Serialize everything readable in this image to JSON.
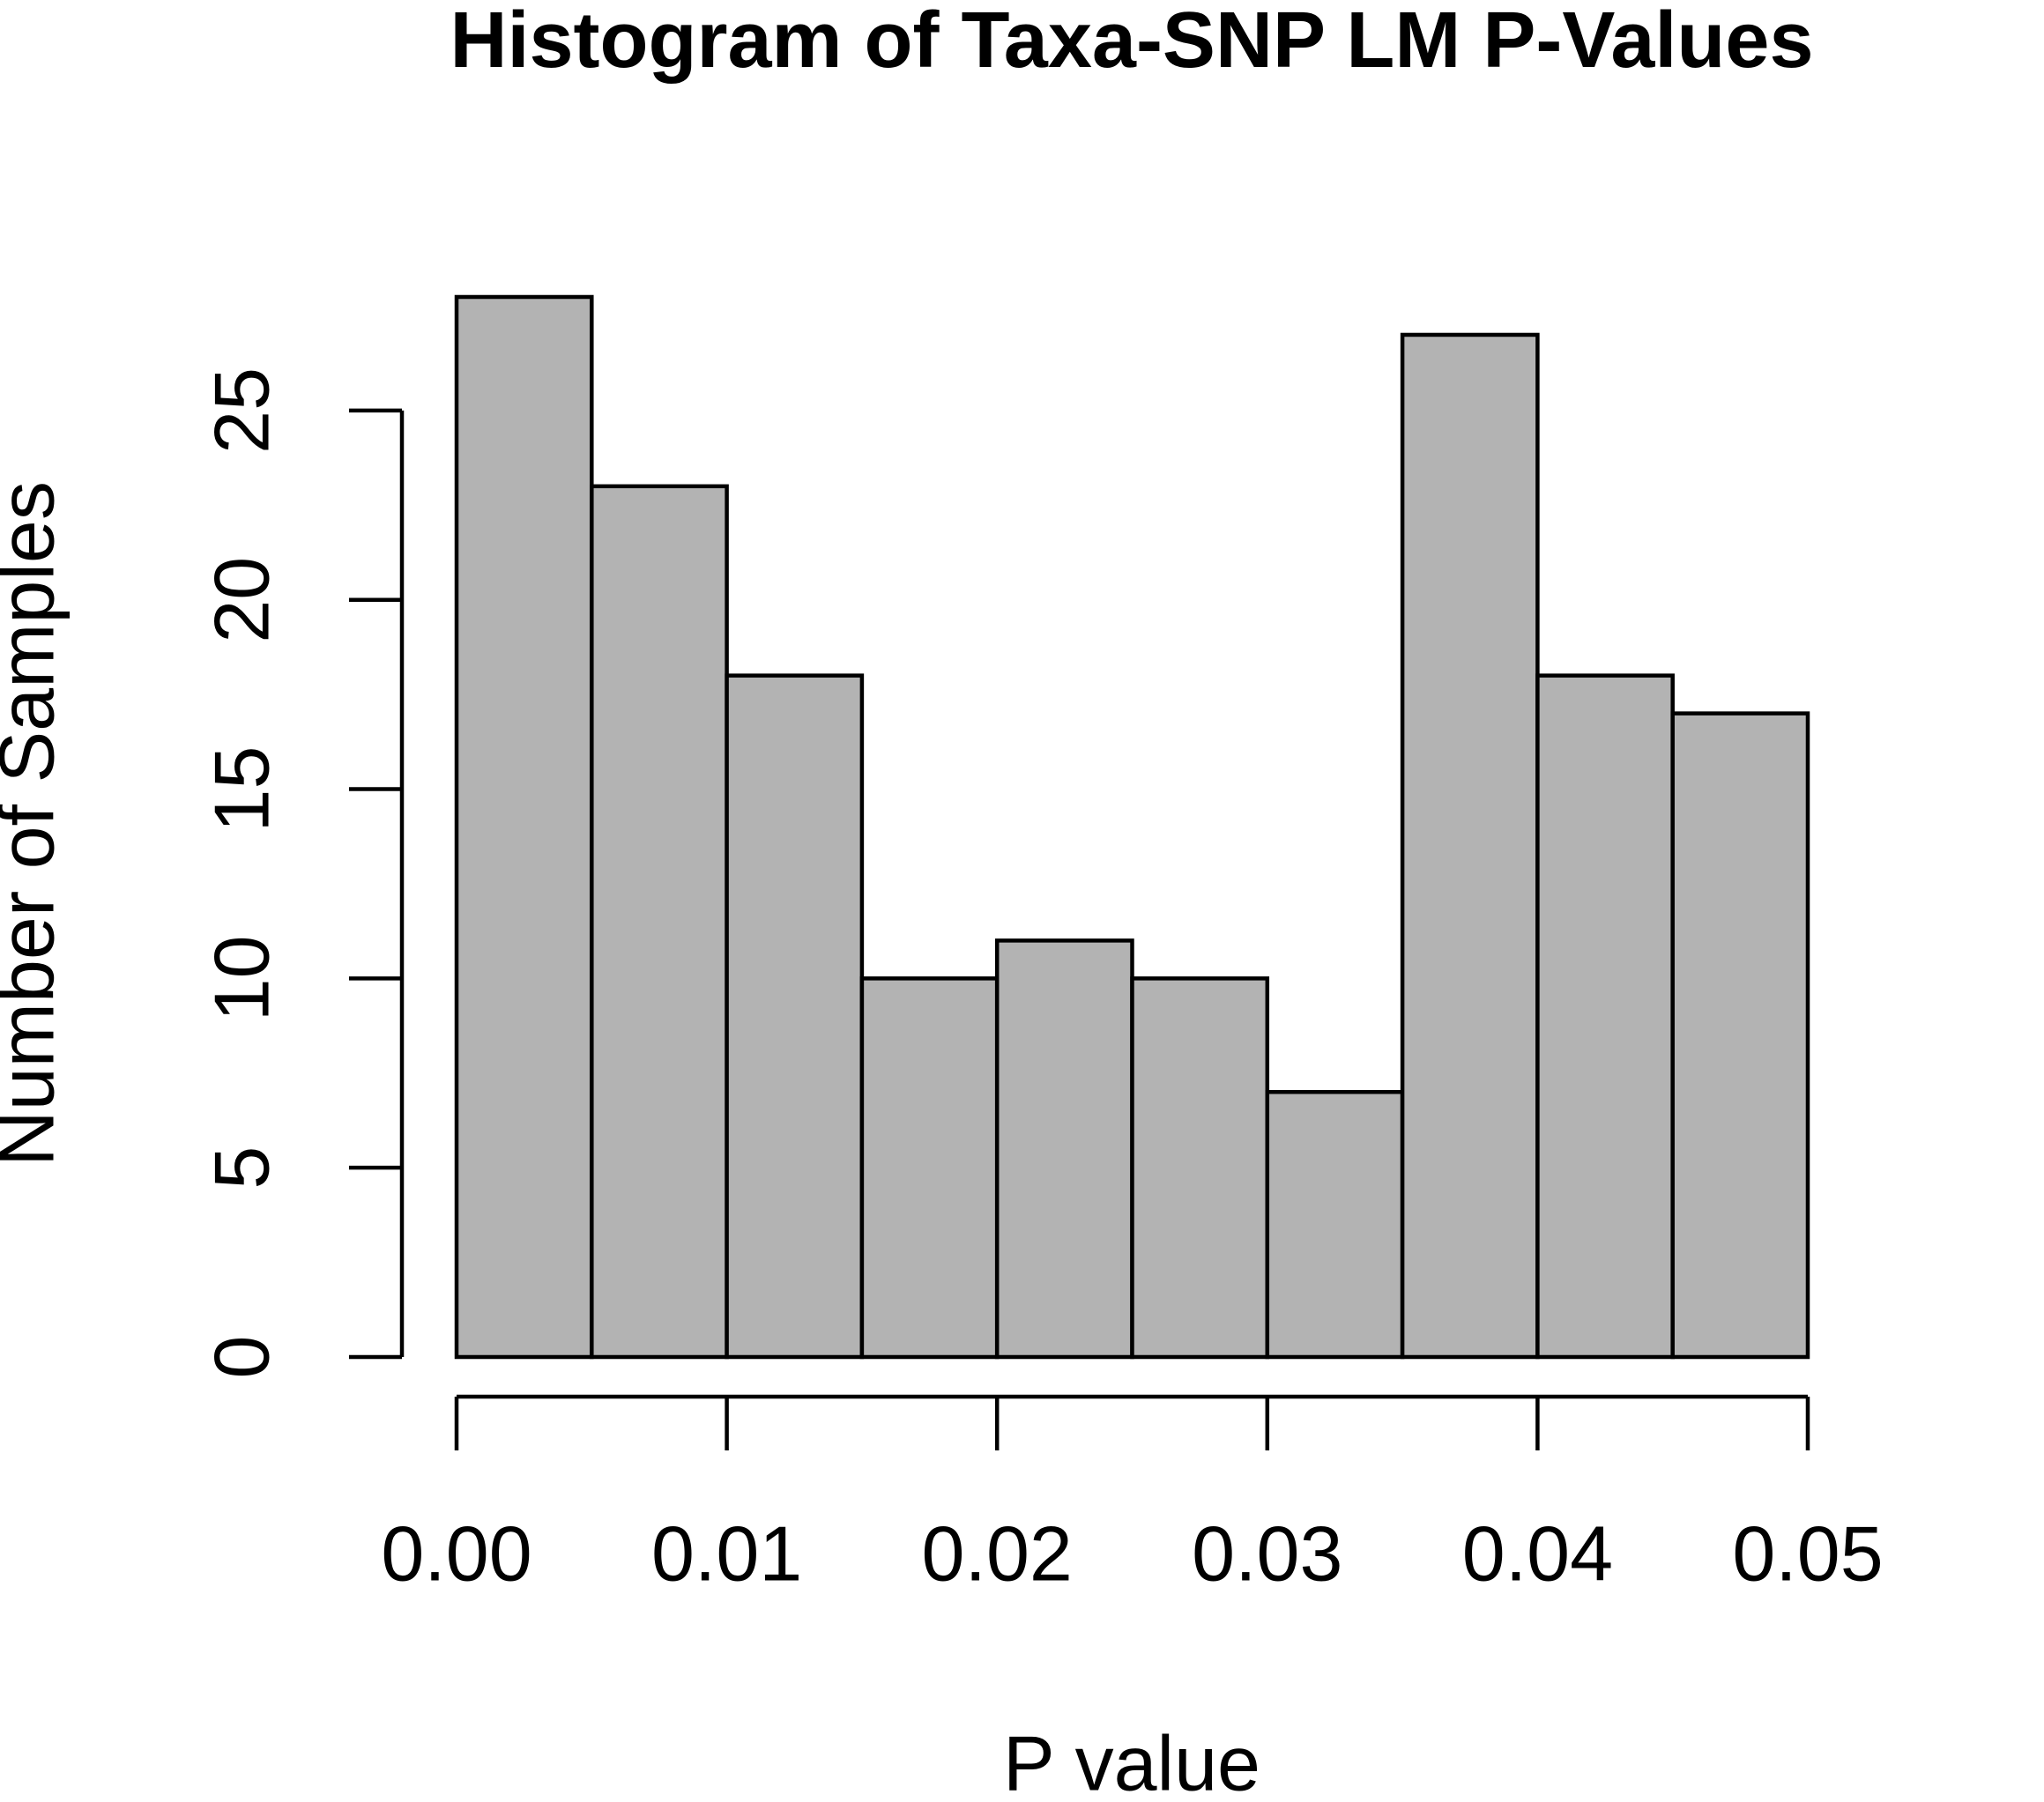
{
  "chart_data": {
    "type": "histogram",
    "title": "Histogram of Taxa-SNP LM P-Values",
    "x_label": "P value",
    "y_label": "Number of Samples",
    "bins": [
      0,
      0.005,
      0.01,
      0.015,
      0.02,
      0.025,
      0.03,
      0.035,
      0.04,
      0.045,
      0.05
    ],
    "values": [
      28,
      23,
      18,
      10,
      11,
      10,
      7,
      27,
      18,
      17
    ],
    "color": "#b3b3b3",
    "xlim": [
      0,
      0.05
    ],
    "ylim": [
      0,
      28
    ],
    "xticks": [
      {
        "value": 0,
        "label": "0.00"
      },
      0.01,
      0.02,
      0.03,
      0.04,
      0.05
    ],
    "yticks": [
      0,
      5,
      10,
      15,
      20,
      25
    ]
  }
}
